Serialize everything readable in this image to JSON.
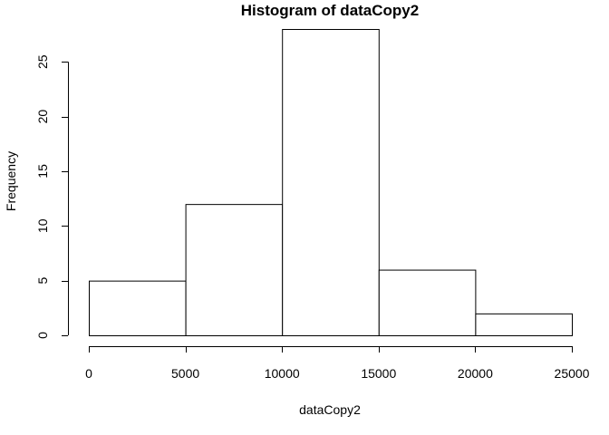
{
  "chart_data": {
    "type": "bar",
    "title": "Histogram of dataCopy2",
    "xlabel": "dataCopy2",
    "ylabel": "Frequency",
    "bins": [
      {
        "from": 0,
        "to": 5000,
        "count": 5
      },
      {
        "from": 5000,
        "to": 10000,
        "count": 12
      },
      {
        "from": 10000,
        "to": 15000,
        "count": 28
      },
      {
        "from": 15000,
        "to": 20000,
        "count": 6
      },
      {
        "from": 20000,
        "to": 25000,
        "count": 2
      }
    ],
    "x_ticks": [
      0,
      5000,
      10000,
      15000,
      20000,
      25000
    ],
    "y_ticks": [
      0,
      5,
      10,
      15,
      20,
      25
    ],
    "xlim": [
      0,
      25000
    ],
    "ylim": [
      0,
      28
    ],
    "grid": false,
    "colors": {
      "bar_fill": "#ffffff",
      "bar_stroke": "#000000"
    }
  }
}
